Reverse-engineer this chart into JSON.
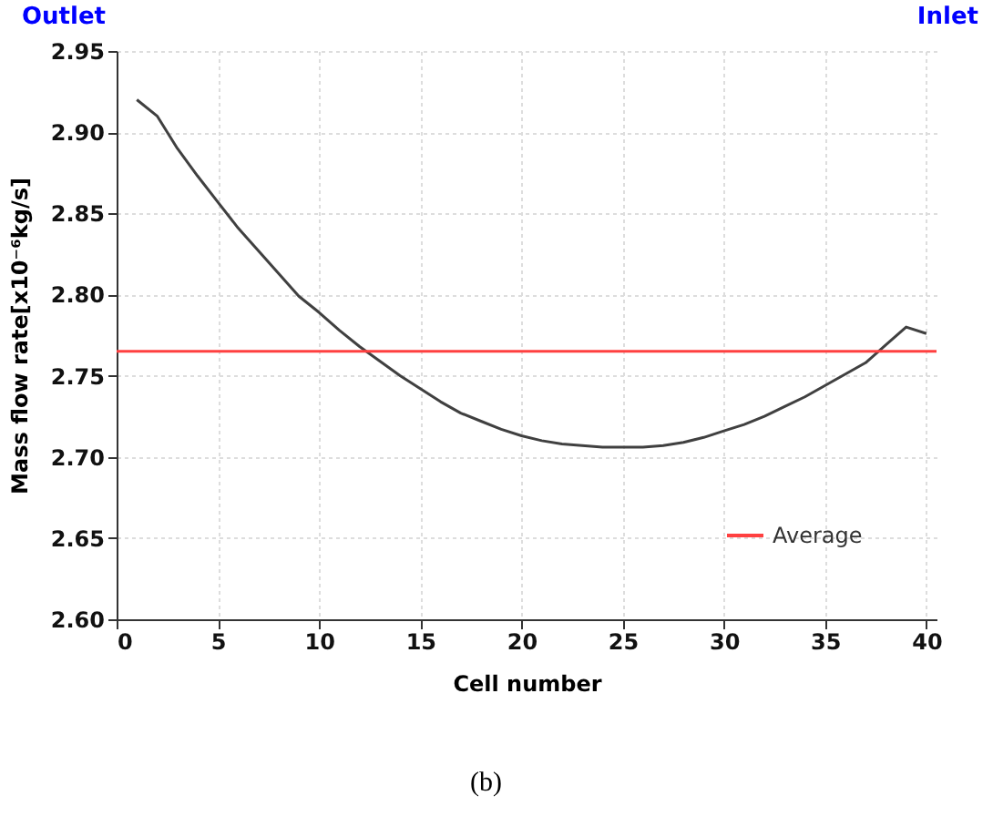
{
  "chart_data": {
    "type": "line",
    "xlabel": "Cell number",
    "ylabel": "Mass flow rate[x10⁻⁶kg/s]",
    "annotations": [
      "Outlet",
      "Inlet",
      "(b)"
    ],
    "x": [
      1,
      2,
      3,
      4,
      5,
      6,
      7,
      8,
      9,
      10,
      11,
      12,
      13,
      14,
      15,
      16,
      17,
      18,
      19,
      20,
      21,
      22,
      23,
      24,
      25,
      26,
      27,
      28,
      29,
      30,
      31,
      32,
      33,
      34,
      35,
      36,
      37,
      38,
      39,
      40
    ],
    "series": [
      {
        "color": "#404040",
        "values": [
          2.92,
          2.91,
          2.89,
          2.873,
          2.857,
          2.841,
          2.827,
          2.813,
          2.799,
          2.789,
          2.778,
          2.768,
          2.759,
          2.75,
          2.742,
          2.734,
          2.727,
          2.722,
          2.717,
          2.713,
          2.71,
          2.708,
          2.707,
          2.706,
          2.706,
          2.706,
          2.707,
          2.709,
          2.712,
          2.716,
          2.72,
          2.725,
          2.731,
          2.737,
          2.744,
          2.751,
          2.758,
          2.769,
          2.78,
          2.776
        ]
      }
    ],
    "ref_lines": [
      {
        "axis": "y",
        "value": 2.765,
        "label": "Average",
        "color": "#ff4040"
      }
    ],
    "xlim": [
      0,
      40.5
    ],
    "xticks": [
      0,
      5,
      10,
      15,
      20,
      25,
      30,
      35,
      40
    ],
    "ylim": [
      2.6,
      2.95
    ],
    "yticks": [
      {
        "value": 2.6,
        "label": "2.60"
      },
      2.65,
      {
        "value": 2.7,
        "label": "2.70"
      },
      2.75,
      {
        "value": 2.8,
        "label": "2.80"
      },
      2.85,
      {
        "value": 2.9,
        "label": "2.90"
      },
      2.95
    ],
    "grid": true,
    "legend": "bottom right",
    "marker": "none",
    "line_style": "solid"
  }
}
